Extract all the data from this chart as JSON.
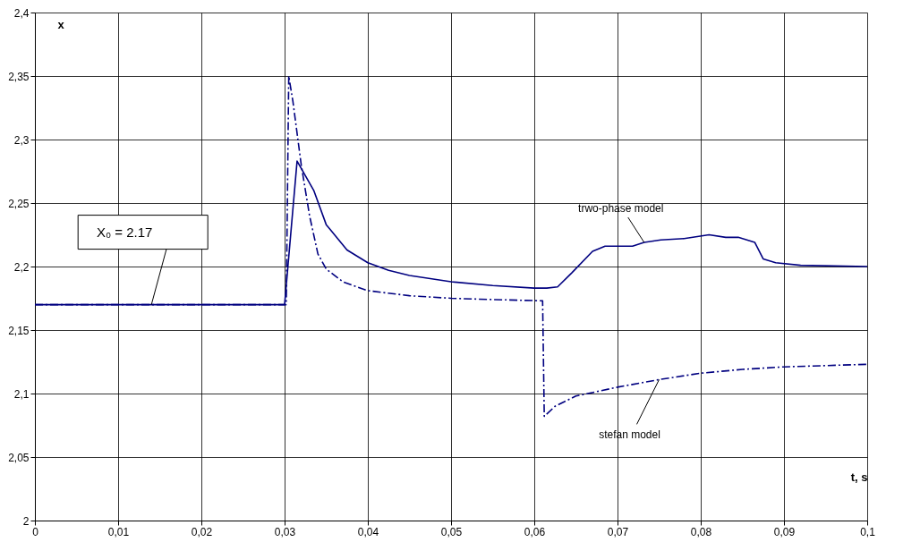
{
  "chart_data": {
    "type": "line",
    "xlabel": "t, s",
    "ylabel": "x",
    "xlim": [
      0,
      0.1
    ],
    "ylim": [
      2,
      2.4
    ],
    "xticks": [
      {
        "value": 0,
        "label": "0"
      },
      {
        "value": 0.01,
        "label": "0,01"
      },
      {
        "value": 0.02,
        "label": "0,02"
      },
      {
        "value": 0.03,
        "label": "0,03"
      },
      {
        "value": 0.04,
        "label": "0,04"
      },
      {
        "value": 0.05,
        "label": "0,05"
      },
      {
        "value": 0.06,
        "label": "0,06"
      },
      {
        "value": 0.07,
        "label": "0,07"
      },
      {
        "value": 0.08,
        "label": "0,08"
      },
      {
        "value": 0.09,
        "label": "0,09"
      },
      {
        "value": 0.1,
        "label": "0,1"
      }
    ],
    "yticks": [
      {
        "value": 2,
        "label": "2"
      },
      {
        "value": 2.05,
        "label": "2,05"
      },
      {
        "value": 2.1,
        "label": "2,1"
      },
      {
        "value": 2.15,
        "label": "2,15"
      },
      {
        "value": 2.2,
        "label": "2,2"
      },
      {
        "value": 2.25,
        "label": "2,25"
      },
      {
        "value": 2.3,
        "label": "2,3"
      },
      {
        "value": 2.35,
        "label": "2,35"
      },
      {
        "value": 2.4,
        "label": "2,4"
      }
    ],
    "grid": true,
    "legend": false,
    "marker": "none",
    "series": [
      {
        "name": "trwo-phase model",
        "color": "#000080",
        "line_style": "solid",
        "x": [
          0,
          0.01,
          0.02,
          0.03,
          0.0315,
          0.0335,
          0.035,
          0.0375,
          0.04,
          0.0425,
          0.045,
          0.05,
          0.055,
          0.06,
          0.0615,
          0.0628,
          0.0645,
          0.067,
          0.0685,
          0.0718,
          0.0732,
          0.0752,
          0.078,
          0.081,
          0.083,
          0.0845,
          0.0865,
          0.0875,
          0.089,
          0.092,
          0.1
        ],
        "values": [
          2.17,
          2.17,
          2.17,
          2.17,
          2.283,
          2.26,
          2.233,
          2.213,
          2.203,
          2.197,
          2.193,
          2.188,
          2.185,
          2.183,
          2.183,
          2.184,
          2.195,
          2.212,
          2.216,
          2.216,
          2.219,
          2.221,
          2.222,
          2.225,
          2.223,
          2.223,
          2.219,
          2.206,
          2.203,
          2.201,
          2.2
        ]
      },
      {
        "name": "stefan model",
        "color": "#000080",
        "line_style": "dashed",
        "x": [
          0,
          0.01,
          0.02,
          0.0302,
          0.0305,
          0.031,
          0.032,
          0.033,
          0.034,
          0.035,
          0.037,
          0.04,
          0.045,
          0.05,
          0.055,
          0.061,
          0.0612,
          0.0625,
          0.065,
          0.07,
          0.075,
          0.08,
          0.085,
          0.09,
          0.1
        ],
        "values": [
          2.17,
          2.17,
          2.17,
          2.17,
          2.35,
          2.33,
          2.28,
          2.24,
          2.21,
          2.198,
          2.188,
          2.181,
          2.177,
          2.175,
          2.174,
          2.173,
          2.082,
          2.09,
          2.098,
          2.105,
          2.111,
          2.116,
          2.119,
          2.121,
          2.123
        ]
      }
    ],
    "annotations": [
      {
        "text": "X₀ = 2.17",
        "x": 0.014,
        "y": 2.17
      }
    ]
  }
}
